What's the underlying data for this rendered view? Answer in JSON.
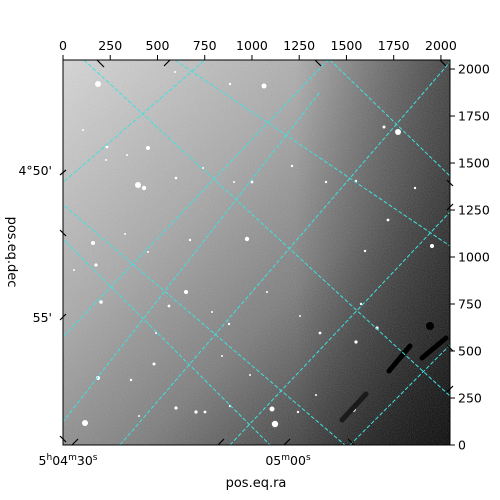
{
  "axes": {
    "xlabel": "pos.eq.ra",
    "ylabel": "pos.eq.dec",
    "top_ticks": [
      "0",
      "250",
      "500",
      "750",
      "1000",
      "1250",
      "1500",
      "1750",
      "2000"
    ],
    "right_ticks": [
      "0",
      "250",
      "500",
      "750",
      "1000",
      "1250",
      "1500",
      "1750",
      "2000"
    ],
    "left_ticks": [
      "4°50'",
      "55'"
    ],
    "bottom_ticks": [
      {
        "h": "5",
        "hsup": "h",
        "m": "04",
        "msup": "m",
        "s": "30",
        "ssup": "s"
      },
      {
        "h": "",
        "hsup": "",
        "m": "05",
        "msup": "m",
        "s": "00",
        "ssup": "s"
      }
    ]
  },
  "colors": {
    "grid": "#3fe0e0",
    "frame": "#000000",
    "sky_light": "#cfcfcf",
    "sky_dark": "#050505"
  }
}
